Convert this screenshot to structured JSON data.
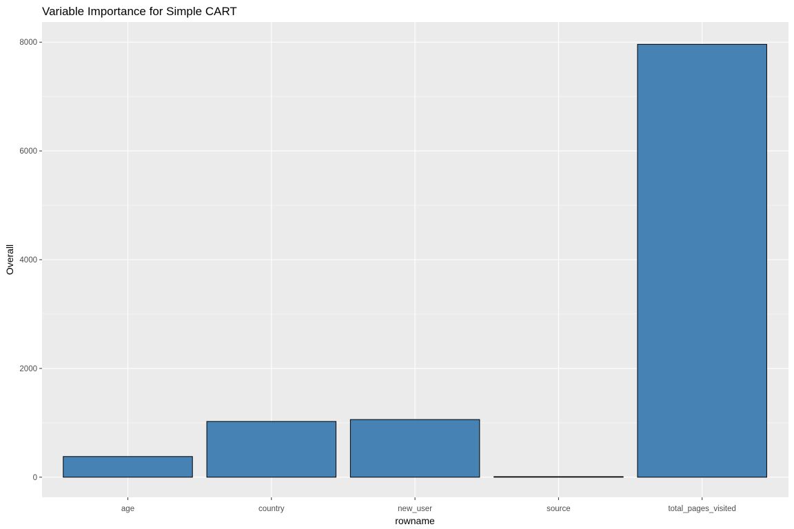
{
  "chart_data": {
    "type": "bar",
    "title": "Variable Importance for Simple CART",
    "xlabel": "rowname",
    "ylabel": "Overall",
    "categories": [
      "age",
      "country",
      "new_user",
      "source",
      "total_pages_visited"
    ],
    "values": [
      380,
      1025,
      1060,
      10,
      7960
    ],
    "ylim": [
      -370,
      8370
    ],
    "yticks": [
      0,
      2000,
      4000,
      6000,
      8000
    ],
    "ytick_labels": [
      "0",
      "2000",
      "4000",
      "6000",
      "8000"
    ],
    "grid": true,
    "legend": "none",
    "colors": {
      "bar_fill": "#4682b4",
      "bar_outline": "#000000",
      "panel_background": "#ebebeb",
      "grid_major": "#ffffff",
      "tick_text": "#4d4d4d"
    }
  }
}
